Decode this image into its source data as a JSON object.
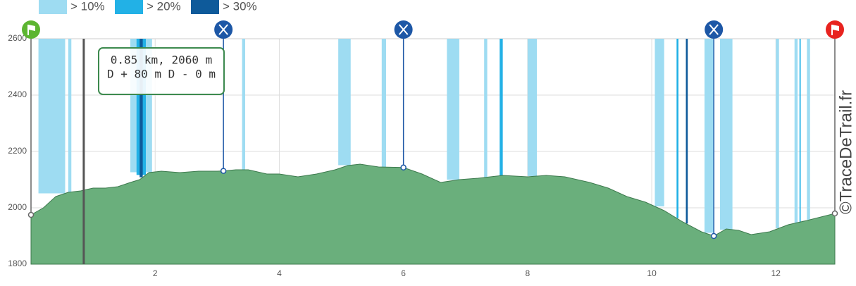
{
  "chart_data": {
    "type": "area",
    "legend": [
      {
        "name": "> 10%",
        "color": "#9edcf2"
      },
      {
        "name": "> 20%",
        "color": "#22b1e6"
      },
      {
        "name": "> 30%",
        "color": "#0e5a9a"
      }
    ],
    "x": [
      0,
      0.2,
      0.4,
      0.6,
      0.8,
      1.0,
      1.2,
      1.4,
      1.6,
      1.75,
      1.9,
      2.1,
      2.4,
      2.7,
      3.0,
      3.1,
      3.3,
      3.5,
      3.8,
      4.0,
      4.3,
      4.6,
      4.9,
      5.1,
      5.3,
      5.6,
      6.0,
      6.3,
      6.6,
      6.9,
      7.2,
      7.6,
      8.0,
      8.3,
      8.6,
      9.0,
      9.3,
      9.6,
      9.9,
      10.2,
      10.5,
      10.8,
      11.0,
      11.2,
      11.4,
      11.6,
      11.9,
      12.2,
      12.5,
      12.95
    ],
    "values": [
      1975,
      2000,
      2040,
      2055,
      2060,
      2070,
      2070,
      2075,
      2090,
      2100,
      2125,
      2130,
      2125,
      2130,
      2130,
      2131,
      2135,
      2135,
      2120,
      2120,
      2110,
      2120,
      2135,
      2150,
      2155,
      2145,
      2143,
      2120,
      2090,
      2100,
      2105,
      2115,
      2110,
      2115,
      2110,
      2090,
      2070,
      2040,
      2020,
      1990,
      1950,
      1915,
      1900,
      1925,
      1920,
      1905,
      1915,
      1940,
      1955,
      1980
    ],
    "color": "#6aaf7c",
    "line_color": "#3d7a4e",
    "slope_bands": [
      {
        "from": 0.12,
        "to": 0.55,
        "level": 0
      },
      {
        "from": 0.6,
        "to": 0.65,
        "level": 0
      },
      {
        "from": 1.6,
        "to": 1.95,
        "level": 0
      },
      {
        "from": 3.4,
        "to": 3.45,
        "level": 0
      },
      {
        "from": 4.95,
        "to": 5.15,
        "level": 0
      },
      {
        "from": 5.65,
        "to": 5.72,
        "level": 0
      },
      {
        "from": 6.7,
        "to": 6.9,
        "level": 0
      },
      {
        "from": 7.3,
        "to": 7.35,
        "level": 0
      },
      {
        "from": 8.0,
        "to": 8.15,
        "level": 0
      },
      {
        "from": 10.05,
        "to": 10.2,
        "level": 0
      },
      {
        "from": 10.85,
        "to": 11.0,
        "level": 0
      },
      {
        "from": 11.1,
        "to": 11.3,
        "level": 0
      },
      {
        "from": 12.0,
        "to": 12.05,
        "level": 0
      },
      {
        "from": 12.3,
        "to": 12.35,
        "level": 0
      },
      {
        "from": 12.5,
        "to": 12.55,
        "level": 0
      },
      {
        "from": 1.7,
        "to": 1.85,
        "level": 1
      },
      {
        "from": 7.55,
        "to": 7.6,
        "level": 1
      },
      {
        "from": 10.4,
        "to": 10.43,
        "level": 1
      },
      {
        "from": 12.38,
        "to": 12.4,
        "level": 1
      },
      {
        "from": 1.75,
        "to": 1.8,
        "level": 2
      },
      {
        "from": 10.55,
        "to": 10.58,
        "level": 2
      }
    ],
    "markers": [
      {
        "x": 0,
        "y": 1975,
        "kind": "start"
      },
      {
        "x": 3.1,
        "y": 2131,
        "kind": "food"
      },
      {
        "x": 6.0,
        "y": 2143,
        "kind": "food"
      },
      {
        "x": 11.0,
        "y": 1900,
        "kind": "food"
      },
      {
        "x": 12.95,
        "y": 1980,
        "kind": "finish"
      }
    ],
    "tooltip": {
      "x": 0.85,
      "lines": [
        "0.85 km, 2060 m",
        "D + 80 m D - 0 m"
      ]
    },
    "watermark": "©TraceDeTrail.fr",
    "xlim": [
      0,
      12.95
    ],
    "xticks": [
      2,
      4,
      6,
      8,
      10,
      12
    ],
    "ylim": [
      1800,
      2600
    ],
    "yticks": [
      1800,
      2000,
      2200,
      2400,
      2600
    ],
    "grid": true
  }
}
